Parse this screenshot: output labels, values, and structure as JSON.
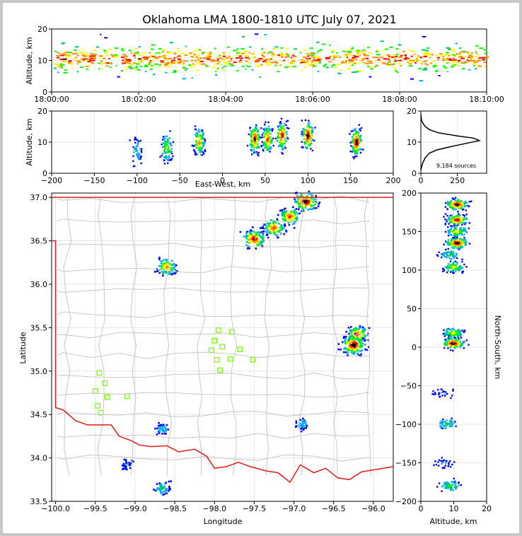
{
  "title": "Oklahoma LMA 1800-1810 UTC July 07, 2021",
  "colors": {
    "state_border": "#e41a1c",
    "county_lines": "#c8c8c8",
    "station_marker": "#7cfc00",
    "hist_line": "#000000",
    "density_scale": [
      "#0000ff",
      "#00aaff",
      "#00c864",
      "#00ff00",
      "#ffff00",
      "#ff8c00",
      "#ff0000",
      "#000000"
    ]
  },
  "chart_data": [
    {
      "id": "time_height",
      "type": "scatter",
      "title": "",
      "xlabel": "",
      "ylabel": "Altitude, km",
      "xlim": [
        "18:00:00",
        "18:10:00"
      ],
      "xticks": [
        "18:00:00",
        "18:02:00",
        "18:04:00",
        "18:06:00",
        "18:08:00",
        "18:10:00"
      ],
      "ylim": [
        0,
        20
      ],
      "yticks": [
        "0",
        "10",
        "20"
      ],
      "series": [
        {
          "density": "continuous",
          "x_range": [
            "18:00:00",
            "18:10:00"
          ],
          "altitude_core_km": [
            8,
            13
          ],
          "altitude_spread_km": [
            3,
            17
          ]
        }
      ]
    },
    {
      "id": "ew_height",
      "type": "scatter",
      "xlabel": "East-West, km",
      "ylabel": "Altitude, km",
      "xlim": [
        -200,
        200
      ],
      "xticks": [
        "−200",
        "−150",
        "−100",
        "−50",
        "0",
        "50",
        "100",
        "150",
        "200"
      ],
      "ylim": [
        0,
        20
      ],
      "yticks": [
        "0",
        "10",
        "20"
      ],
      "clusters": [
        {
          "x": -100,
          "z": 7,
          "intensity": 0.2
        },
        {
          "x": -65,
          "z": 8,
          "intensity": 0.5
        },
        {
          "x": -27,
          "z": 10,
          "intensity": 0.7
        },
        {
          "x": 38,
          "z": 11,
          "intensity": 0.9
        },
        {
          "x": 53,
          "z": 11,
          "intensity": 0.8
        },
        {
          "x": 70,
          "z": 12,
          "intensity": 0.9
        },
        {
          "x": 100,
          "z": 12,
          "intensity": 1.0
        },
        {
          "x": 157,
          "z": 10,
          "intensity": 1.0
        }
      ]
    },
    {
      "id": "altitude_histogram",
      "type": "line",
      "xlabel": "",
      "ylabel": "",
      "xlim": [
        0,
        450
      ],
      "xticks": [
        "0",
        "250"
      ],
      "ylim": [
        0,
        20
      ],
      "yticks": [
        "0",
        "10",
        "20"
      ],
      "annotation": "9,184 sources",
      "points": [
        [
          0,
          1
        ],
        [
          10,
          3
        ],
        [
          30,
          5
        ],
        [
          60,
          6.5
        ],
        [
          110,
          7.5
        ],
        [
          200,
          8.5
        ],
        [
          300,
          9.5
        ],
        [
          400,
          10.5
        ],
        [
          360,
          11.3
        ],
        [
          250,
          12.0
        ],
        [
          120,
          13.0
        ],
        [
          60,
          14.0
        ],
        [
          30,
          15.0
        ],
        [
          15,
          16.0
        ],
        [
          5,
          17.0
        ],
        [
          2,
          18.0
        ],
        [
          0,
          19.0
        ]
      ]
    },
    {
      "id": "plan_view",
      "type": "scatter",
      "xlabel": "Longitude",
      "ylabel": "Latitude",
      "xlim": [
        -100.05,
        -95.75
      ],
      "xticks": [
        "−100.0",
        "−99.5",
        "−99.0",
        "−98.5",
        "−98.0",
        "−97.5",
        "−97.0",
        "−96.5",
        "−96.0"
      ],
      "ylim": [
        33.5,
        37.05
      ],
      "yticks": [
        "33.5",
        "34.0",
        "34.5",
        "35.0",
        "35.5",
        "36.0",
        "36.5",
        "37.0"
      ],
      "clusters": [
        {
          "lon": -96.85,
          "lat": 36.95,
          "intensity": 1.0
        },
        {
          "lon": -97.05,
          "lat": 36.78,
          "intensity": 0.8
        },
        {
          "lon": -97.25,
          "lat": 36.65,
          "intensity": 0.8
        },
        {
          "lon": -97.5,
          "lat": 36.52,
          "intensity": 0.9
        },
        {
          "lon": -98.6,
          "lat": 36.2,
          "intensity": 0.7
        },
        {
          "lon": -96.2,
          "lat": 35.42,
          "intensity": 0.8
        },
        {
          "lon": -96.25,
          "lat": 35.3,
          "intensity": 1.0
        },
        {
          "lon": -98.65,
          "lat": 34.33,
          "intensity": 0.2
        },
        {
          "lon": -96.9,
          "lat": 34.39,
          "intensity": 0.2
        },
        {
          "lon": -98.65,
          "lat": 33.65,
          "intensity": 0.3
        },
        {
          "lon": -99.1,
          "lat": 33.92,
          "intensity": 0.1
        }
      ],
      "stations": [
        [
          -97.95,
          35.47
        ],
        [
          -97.78,
          35.45
        ],
        [
          -98.0,
          35.35
        ],
        [
          -97.9,
          35.28
        ],
        [
          -98.04,
          35.24
        ],
        [
          -97.68,
          35.25
        ],
        [
          -97.97,
          35.13
        ],
        [
          -97.8,
          35.14
        ],
        [
          -97.52,
          35.13
        ],
        [
          -97.93,
          35.01
        ],
        [
          -99.45,
          34.98
        ],
        [
          -99.38,
          34.86
        ],
        [
          -99.5,
          34.77
        ],
        [
          -99.35,
          34.7
        ],
        [
          -99.1,
          34.71
        ],
        [
          -99.47,
          34.6
        ],
        [
          -99.43,
          34.52
        ]
      ]
    },
    {
      "id": "ns_height",
      "type": "scatter",
      "xlabel": "Altitude, km",
      "ylabel": "North-South, km",
      "xlim": [
        0,
        20
      ],
      "xticks": [
        "0",
        "10",
        "20"
      ],
      "ylim": [
        -200,
        200
      ],
      "yticks": [
        "−200",
        "−150",
        "−100",
        "−50",
        "0",
        "50",
        "100",
        "150",
        "200"
      ],
      "clusters": [
        {
          "z": 11,
          "y": 185,
          "intensity": 1.0
        },
        {
          "z": 11,
          "y": 165,
          "intensity": 0.9
        },
        {
          "z": 11,
          "y": 150,
          "intensity": 0.6
        },
        {
          "z": 11,
          "y": 135,
          "intensity": 1.0
        },
        {
          "z": 9,
          "y": 120,
          "intensity": 0.3
        },
        {
          "z": 10,
          "y": 104,
          "intensity": 0.6
        },
        {
          "z": 10,
          "y": 18,
          "intensity": 0.6
        },
        {
          "z": 10,
          "y": 5,
          "intensity": 1.0
        },
        {
          "z": 7,
          "y": -60,
          "intensity": 0.1
        },
        {
          "z": 8,
          "y": -100,
          "intensity": 0.3
        },
        {
          "z": 7,
          "y": -150,
          "intensity": 0.1
        },
        {
          "z": 9,
          "y": -180,
          "intensity": 0.4
        }
      ]
    }
  ]
}
